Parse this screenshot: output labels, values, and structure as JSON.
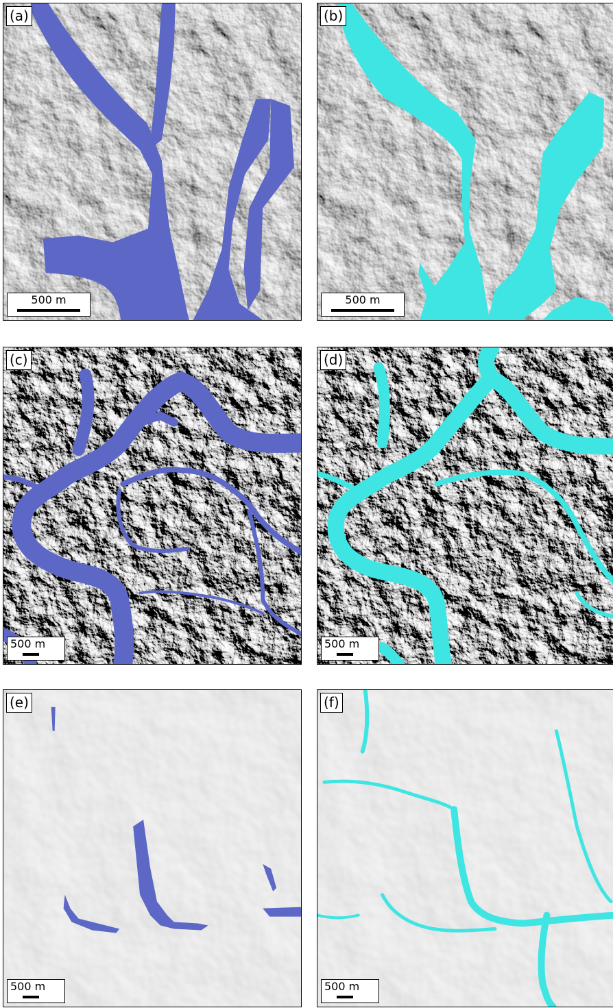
{
  "colors": {
    "blue_flood": "#5c67c6",
    "cyan_flood": "#3fe5e3",
    "frame": "#000000"
  },
  "panels": [
    {
      "label": "(a)",
      "scale": "500 m",
      "overlay": "blue",
      "terrain": "rugged"
    },
    {
      "label": "(b)",
      "scale": "500 m",
      "overlay": "cyan",
      "terrain": "rugged"
    },
    {
      "label": "(c)",
      "scale": "500 m",
      "overlay": "blue",
      "terrain": "dissected"
    },
    {
      "label": "(d)",
      "scale": "500 m",
      "overlay": "cyan",
      "terrain": "dissected"
    },
    {
      "label": "(e)",
      "scale": "500 m",
      "overlay": "blue",
      "terrain": "smooth"
    },
    {
      "label": "(f)",
      "scale": "500 m",
      "overlay": "cyan",
      "terrain": "smooth"
    }
  ]
}
